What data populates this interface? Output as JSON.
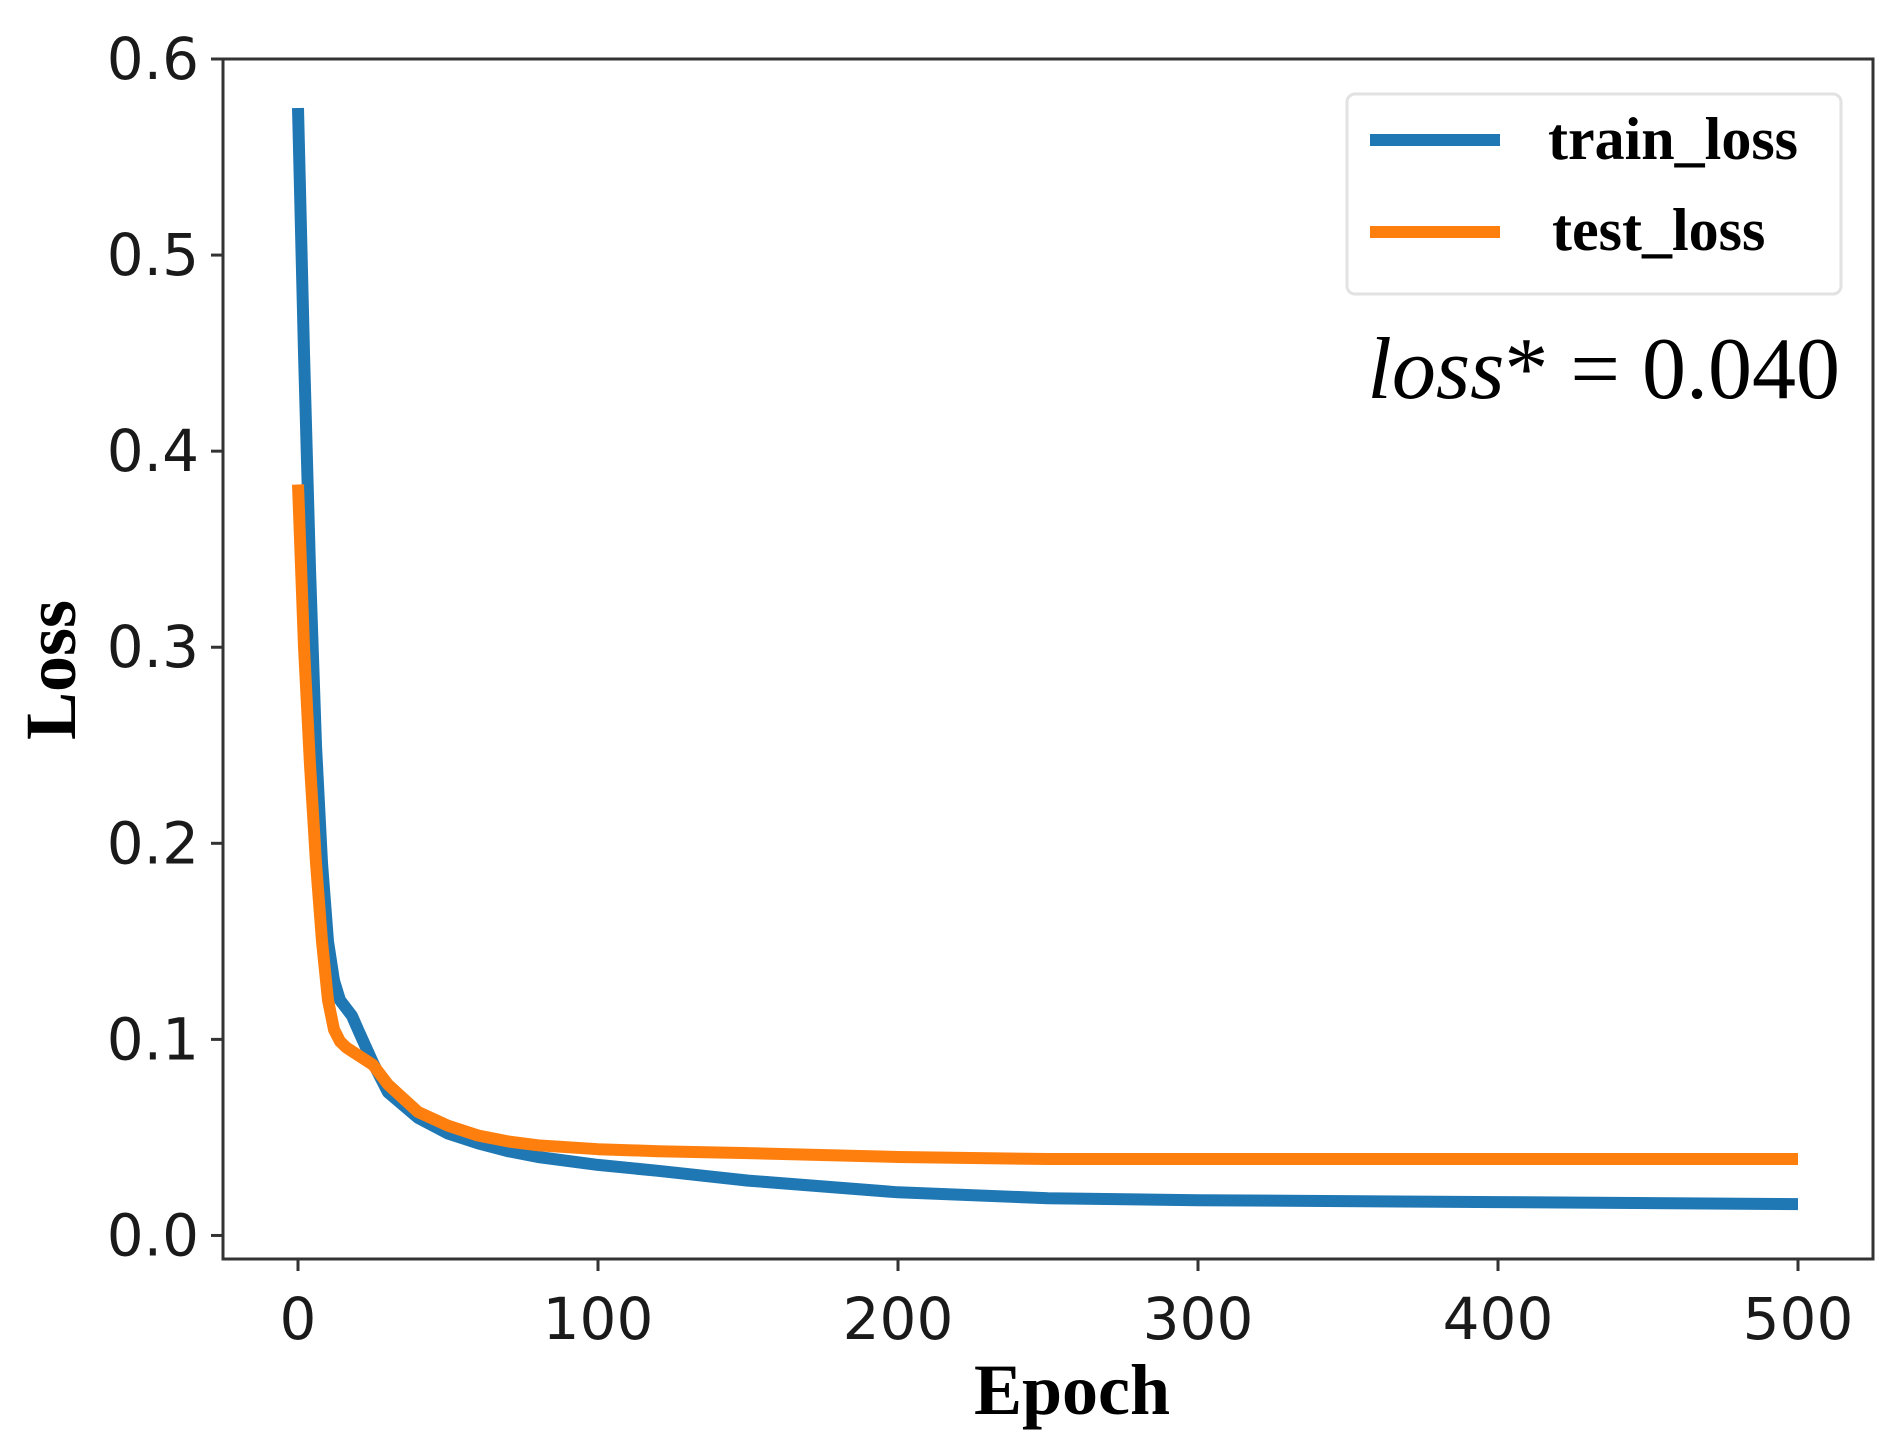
{
  "chart_data": {
    "type": "line",
    "title": "",
    "xlabel": "Epoch",
    "ylabel": "Loss",
    "xlim": [
      -25,
      525
    ],
    "ylim": [
      -0.012,
      0.6
    ],
    "x_ticks": [
      0,
      100,
      200,
      300,
      400,
      500
    ],
    "x_tick_labels": [
      "0",
      "100",
      "200",
      "300",
      "400",
      "500"
    ],
    "y_ticks": [
      0.0,
      0.1,
      0.2,
      0.3,
      0.4,
      0.5,
      0.6
    ],
    "y_tick_labels": [
      "0.0",
      "0.1",
      "0.2",
      "0.3",
      "0.4",
      "0.5",
      "0.6"
    ],
    "grid": false,
    "legend_position": "top-right",
    "annotation": {
      "italic_part": "loss",
      "rest": "* = 0.040"
    },
    "series": [
      {
        "name": "train_loss",
        "color": "#1f77b4",
        "x": [
          0,
          2,
          4,
          6,
          8,
          10,
          12,
          14,
          16,
          18,
          20,
          25,
          30,
          40,
          50,
          60,
          70,
          80,
          100,
          120,
          150,
          200,
          250,
          300,
          400,
          500
        ],
        "y": [
          0.575,
          0.45,
          0.34,
          0.25,
          0.19,
          0.15,
          0.13,
          0.12,
          0.116,
          0.112,
          0.105,
          0.088,
          0.073,
          0.06,
          0.052,
          0.047,
          0.043,
          0.04,
          0.036,
          0.033,
          0.028,
          0.022,
          0.019,
          0.018,
          0.017,
          0.016
        ]
      },
      {
        "name": "test_loss",
        "color": "#ff7f0e",
        "x": [
          0,
          2,
          4,
          6,
          8,
          10,
          12,
          14,
          16,
          18,
          20,
          25,
          30,
          40,
          50,
          60,
          70,
          80,
          100,
          120,
          150,
          200,
          250,
          300,
          400,
          500
        ],
        "y": [
          0.383,
          0.3,
          0.24,
          0.19,
          0.15,
          0.12,
          0.105,
          0.099,
          0.096,
          0.094,
          0.092,
          0.087,
          0.077,
          0.063,
          0.056,
          0.051,
          0.048,
          0.046,
          0.044,
          0.043,
          0.042,
          0.04,
          0.039,
          0.039,
          0.039,
          0.039
        ]
      }
    ]
  }
}
